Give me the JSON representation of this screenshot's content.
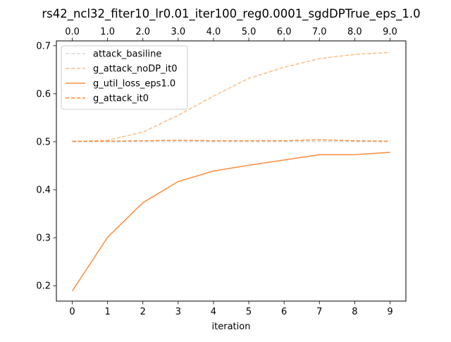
{
  "chart_data": {
    "type": "line",
    "title": "rs42_ncl32_fiter10_lr0.01_iter100_reg0.0001_sgdDPTrue_eps_1.0",
    "xlabel": "iteration",
    "ylabel": "",
    "x": [
      0,
      1,
      2,
      3,
      4,
      5,
      6,
      7,
      8,
      9
    ],
    "x_ticks": [
      "0",
      "1",
      "2",
      "3",
      "4",
      "5",
      "6",
      "7",
      "8",
      "9"
    ],
    "x_top_ticks": [
      "0.0",
      "1.0",
      "2.0",
      "3.0",
      "4.0",
      "5.0",
      "6.0",
      "7.0",
      "8.0",
      "9.0"
    ],
    "y_ticks": [
      "0.2",
      "0.3",
      "0.4",
      "0.5",
      "0.6",
      "0.7"
    ],
    "xlim": [
      -0.45,
      9.45
    ],
    "ylim": [
      0.168,
      0.71
    ],
    "grid": false,
    "legend_position": "top-left",
    "series": [
      {
        "name": "attack_basiline",
        "color": "#d9d9d9",
        "style": "dashed",
        "values": [
          0.5,
          0.5,
          0.5,
          0.5,
          0.5,
          0.5,
          0.5,
          0.5,
          0.5,
          0.5
        ]
      },
      {
        "name": "g_attack_noDP_it0",
        "color": "#fdbe85",
        "style": "dashed",
        "values": [
          0.5,
          0.503,
          0.52,
          0.555,
          0.595,
          0.632,
          0.655,
          0.673,
          0.682,
          0.686
        ]
      },
      {
        "name": "g_util_loss_eps1.0",
        "color": "#fd8d3c",
        "style": "solid",
        "values": [
          0.189,
          0.301,
          0.373,
          0.417,
          0.439,
          0.451,
          0.462,
          0.473,
          0.473,
          0.478
        ]
      },
      {
        "name": "g_attack_it0",
        "color": "#fd8d3c",
        "style": "dashed",
        "values": [
          0.501,
          0.501,
          0.502,
          0.503,
          0.502,
          0.502,
          0.502,
          0.504,
          0.502,
          0.501
        ]
      }
    ]
  }
}
